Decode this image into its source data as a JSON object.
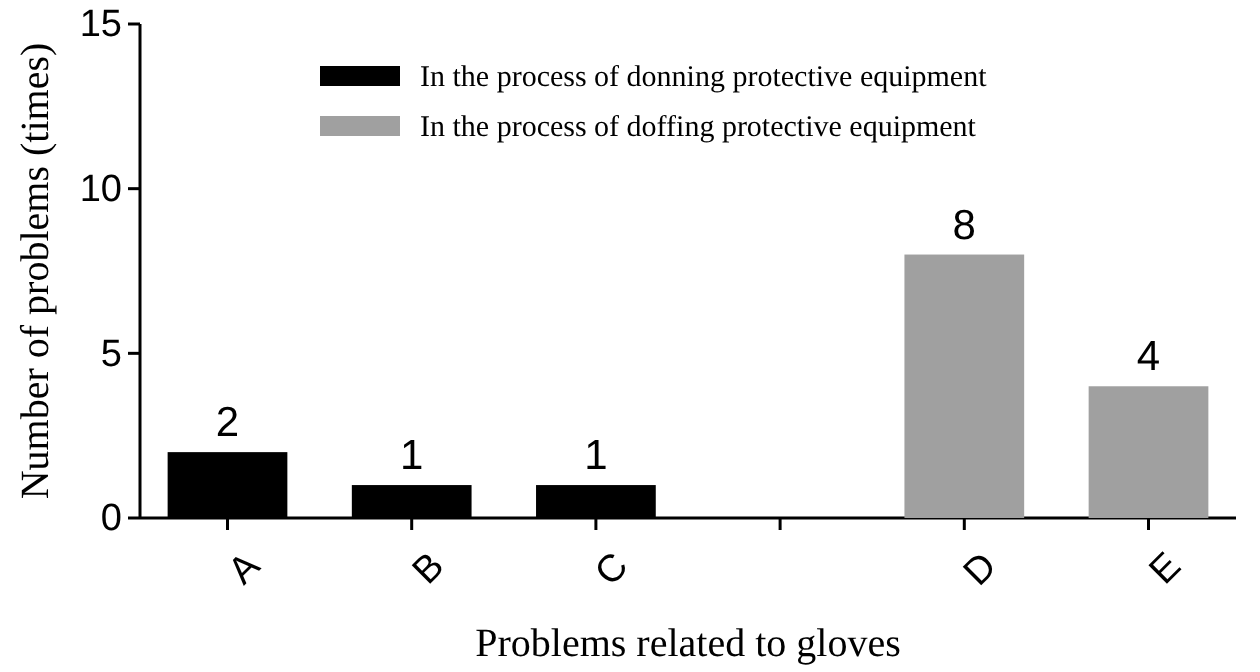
{
  "chart_data": {
    "type": "bar",
    "xlabel": "Problems related to gloves",
    "ylabel": "Number of problems (times)",
    "categories": [
      "A",
      "B",
      "C",
      null,
      "D",
      "E"
    ],
    "series": [
      {
        "name": "In the process of donning protective equipment",
        "color": "#000000",
        "values": [
          2,
          1,
          1,
          null,
          null,
          null
        ]
      },
      {
        "name": "In the process of doffing protective equipment",
        "color": "#a0a0a0",
        "values": [
          null,
          null,
          null,
          null,
          8,
          4
        ]
      }
    ],
    "ylim": [
      0,
      15
    ],
    "yticks": [
      0,
      5,
      10,
      15
    ],
    "data_labels": true,
    "legend": "top",
    "grid": false
  }
}
